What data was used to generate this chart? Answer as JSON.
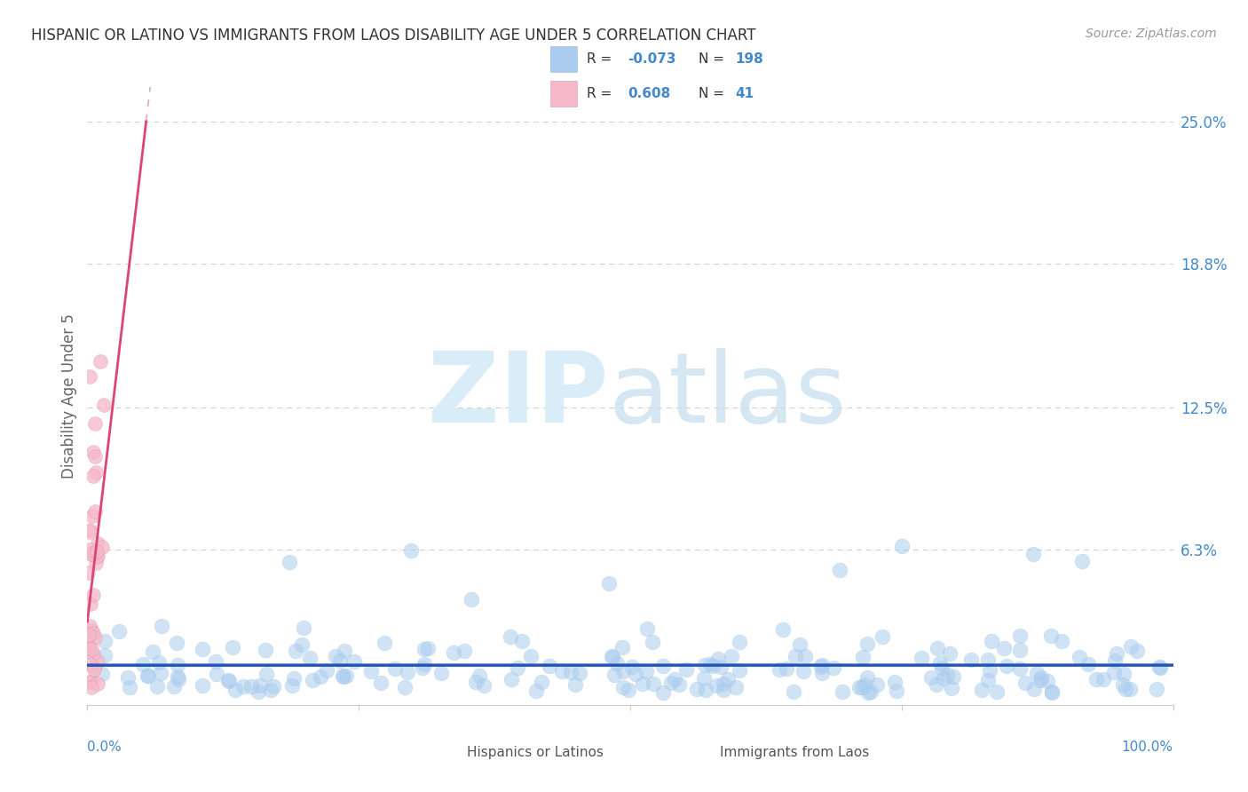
{
  "title": "HISPANIC OR LATINO VS IMMIGRANTS FROM LAOS DISABILITY AGE UNDER 5 CORRELATION CHART",
  "source": "Source: ZipAtlas.com",
  "ylabel": "Disability Age Under 5",
  "xlim": [
    0.0,
    1.0
  ],
  "ylim": [
    -0.005,
    0.265
  ],
  "blue_R": -0.073,
  "blue_N": 198,
  "pink_R": 0.608,
  "pink_N": 41,
  "blue_scatter_color": "#AACCEE",
  "blue_line_color": "#2255BB",
  "pink_scatter_color": "#F5B8C8",
  "pink_line_color": "#DD4477",
  "pink_dash_color": "#DDAACC",
  "bg_color": "#FFFFFF",
  "grid_color": "#CCCCCC",
  "title_fontsize": 12,
  "tick_label_color": "#4488CC",
  "text_color": "#333333",
  "source_color": "#999999",
  "ylabel_color": "#666666",
  "legend_label_blue": "Hispanics or Latinos",
  "legend_label_pink": "Immigrants from Laos",
  "ytick_vals": [
    0.0,
    0.063,
    0.125,
    0.188,
    0.25
  ],
  "ytick_labels": [
    "",
    "6.3%",
    "12.5%",
    "18.8%",
    "25.0%"
  ],
  "seed": 17
}
